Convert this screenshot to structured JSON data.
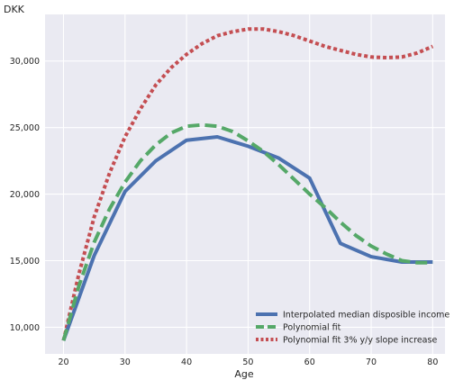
{
  "chart_data": {
    "type": "line",
    "ylabel": "DKK",
    "xlabel": "Age",
    "xlim": [
      17,
      82
    ],
    "ylim": [
      8000,
      33500
    ],
    "xticks": [
      20,
      30,
      40,
      50,
      60,
      70,
      80
    ],
    "xtick_labels": [
      "20",
      "30",
      "40",
      "50",
      "60",
      "70",
      "80"
    ],
    "yticks": [
      10000,
      15000,
      20000,
      25000,
      30000
    ],
    "ytick_labels": [
      "10,000",
      "15,000",
      "20,000",
      "25,000",
      "30,000"
    ],
    "grid": true,
    "legend_position": "lower-right",
    "series": [
      {
        "name": "Interpolated median disposible income",
        "style": "solid",
        "color": "#4c72b0",
        "x": [
          20,
          25,
          30,
          35,
          40,
          45,
          50,
          55,
          60,
          65,
          70,
          75,
          80
        ],
        "y": [
          9000,
          15400,
          20200,
          22500,
          24050,
          24300,
          23600,
          22700,
          21200,
          16300,
          15300,
          14900,
          14900
        ]
      },
      {
        "name": "Polynomial fit",
        "style": "dashed",
        "color": "#55a868",
        "x": [
          20,
          22.5,
          25,
          27.5,
          30,
          32.5,
          35,
          37.5,
          40,
          42.5,
          45,
          47.5,
          50,
          52.5,
          55,
          57.5,
          60,
          62.5,
          65,
          67.5,
          70,
          72.5,
          75,
          77.5,
          80
        ],
        "y": [
          9000,
          13100,
          16400,
          18900,
          20900,
          22500,
          23700,
          24600,
          25100,
          25200,
          25100,
          24700,
          24000,
          23200,
          22200,
          21100,
          20000,
          19000,
          17900,
          16900,
          16100,
          15500,
          15000,
          14850,
          14850
        ]
      },
      {
        "name": "Polynomial fit 3% y/y slope increase",
        "style": "dotted",
        "color": "#c44e52",
        "x": [
          20,
          22.5,
          25,
          27.5,
          30,
          32.5,
          35,
          37.5,
          40,
          42.5,
          45,
          47.5,
          50,
          52.5,
          55,
          57.5,
          60,
          62.5,
          65,
          67.5,
          70,
          72.5,
          75,
          77.5,
          80
        ],
        "y": [
          9000,
          14000,
          18300,
          21600,
          24300,
          26400,
          28200,
          29500,
          30500,
          31300,
          31900,
          32200,
          32400,
          32400,
          32200,
          31900,
          31500,
          31100,
          30800,
          30500,
          30300,
          30250,
          30300,
          30600,
          31100
        ]
      }
    ]
  }
}
